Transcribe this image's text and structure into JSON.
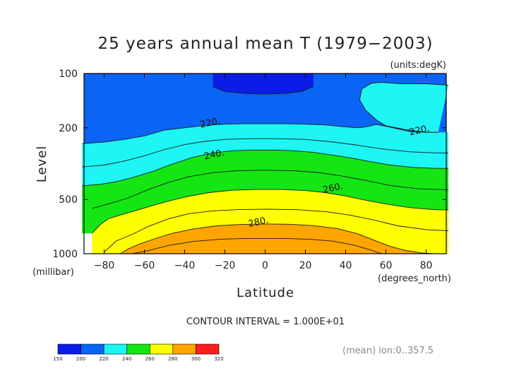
{
  "header": {
    "title": "25 years annual mean T (1979−2003)",
    "units": "(units:degK)"
  },
  "footer": {
    "contour_interval": "CONTOUR INTERVAL = 1.000E+01",
    "mean_note": "(mean) lon:0..357.5"
  },
  "colors": {
    "band_150_200": "#0a1de6",
    "band_200_220": "#0a64f5",
    "band_220_240": "#1ef5f5",
    "band_240_260": "#14e614",
    "band_260_280": "#ffff00",
    "band_280_300": "#ffa500",
    "band_300_320": "#ff1e1e"
  },
  "chart_data": {
    "type": "contour",
    "title": "25 years annual mean T (1979−2003)",
    "units": "(units:degK)",
    "xlabel": "Latitude",
    "xunits": "(degrees_north)",
    "ylabel": "Level",
    "yunits": "(millibar)",
    "xlim": [
      -90,
      90
    ],
    "ylim": [
      1000,
      100
    ],
    "yscale": "log",
    "xticks": [
      -80,
      -60,
      -40,
      -20,
      0,
      20,
      40,
      60,
      80
    ],
    "xtick_labels": [
      "−80",
      "−60",
      "−40",
      "−20",
      "0",
      "20",
      "40",
      "60",
      "80"
    ],
    "yticks": [
      100,
      200,
      500,
      1000
    ],
    "ytick_labels": [
      "100",
      "200",
      "500",
      "1000"
    ],
    "contour_interval": 10,
    "contour_labels": [
      {
        "text": "220.",
        "lat": -32,
        "p": 200
      },
      {
        "text": "220.",
        "lat": 72,
        "p": 220
      },
      {
        "text": "240.",
        "lat": -30,
        "p": 300
      },
      {
        "text": "260.",
        "lat": 29,
        "p": 460
      },
      {
        "text": "280.",
        "lat": -8,
        "p": 710
      }
    ],
    "colorbar": {
      "levels": [
        150,
        200,
        220,
        240,
        260,
        280,
        300,
        320
      ],
      "level_labels": [
        "150",
        "200",
        "220",
        "240",
        "260",
        "280",
        "300",
        "320"
      ],
      "colors": [
        "#0a1de6",
        "#0a64f5",
        "#1ef5f5",
        "#14e614",
        "#ffff00",
        "#ffa500",
        "#ff1e1e"
      ]
    },
    "grid": false
  }
}
